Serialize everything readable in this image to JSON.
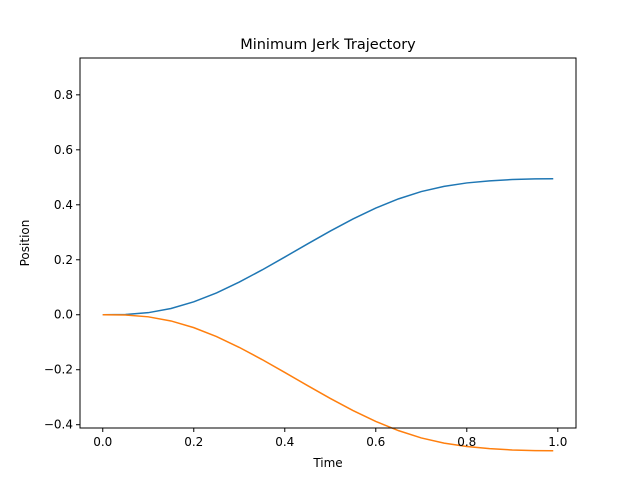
{
  "chart_data": {
    "type": "line",
    "title": "Minimum Jerk Trajectory",
    "xlabel": "Time",
    "ylabel": "Position",
    "xlim": [
      -0.05,
      1.04
    ],
    "ylim": [
      -0.412,
      0.934
    ],
    "xticks": [
      0.0,
      0.2,
      0.4,
      0.6,
      0.8,
      1.0
    ],
    "xtick_labels": [
      "0.0",
      "0.2",
      "0.4",
      "0.6",
      "0.8",
      "1.0"
    ],
    "yticks": [
      -0.4,
      -0.2,
      0.0,
      0.2,
      0.4,
      0.6,
      0.8
    ],
    "ytick_labels": [
      "−0.4",
      "−0.2",
      "0.0",
      "0.2",
      "0.4",
      "0.6",
      "0.8"
    ],
    "grid": false,
    "legend": "none",
    "x": [
      0.0,
      0.05,
      0.1,
      0.15,
      0.2,
      0.25,
      0.3,
      0.35,
      0.4,
      0.45,
      0.5,
      0.55,
      0.6,
      0.65,
      0.7,
      0.75,
      0.8,
      0.85,
      0.9,
      0.95,
      0.99
    ],
    "series": [
      {
        "color": "#1f77b4",
        "values": [
          0.0,
          0.0011,
          0.0075,
          0.0226,
          0.0469,
          0.0795,
          0.1188,
          0.1629,
          0.2099,
          0.2576,
          0.3045,
          0.3485,
          0.3881,
          0.4216,
          0.4481,
          0.4671,
          0.4795,
          0.4872,
          0.4918,
          0.4942,
          0.4947
        ]
      },
      {
        "color": "#ff7f0e",
        "values": [
          0.0,
          -0.001,
          -0.0075,
          -0.0226,
          -0.0469,
          -0.0795,
          -0.1188,
          -0.1629,
          -0.2099,
          -0.2576,
          -0.3045,
          -0.3485,
          -0.3881,
          -0.4216,
          -0.4481,
          -0.4671,
          -0.4795,
          -0.4872,
          -0.4918,
          -0.4942,
          -0.4947
        ]
      }
    ]
  }
}
